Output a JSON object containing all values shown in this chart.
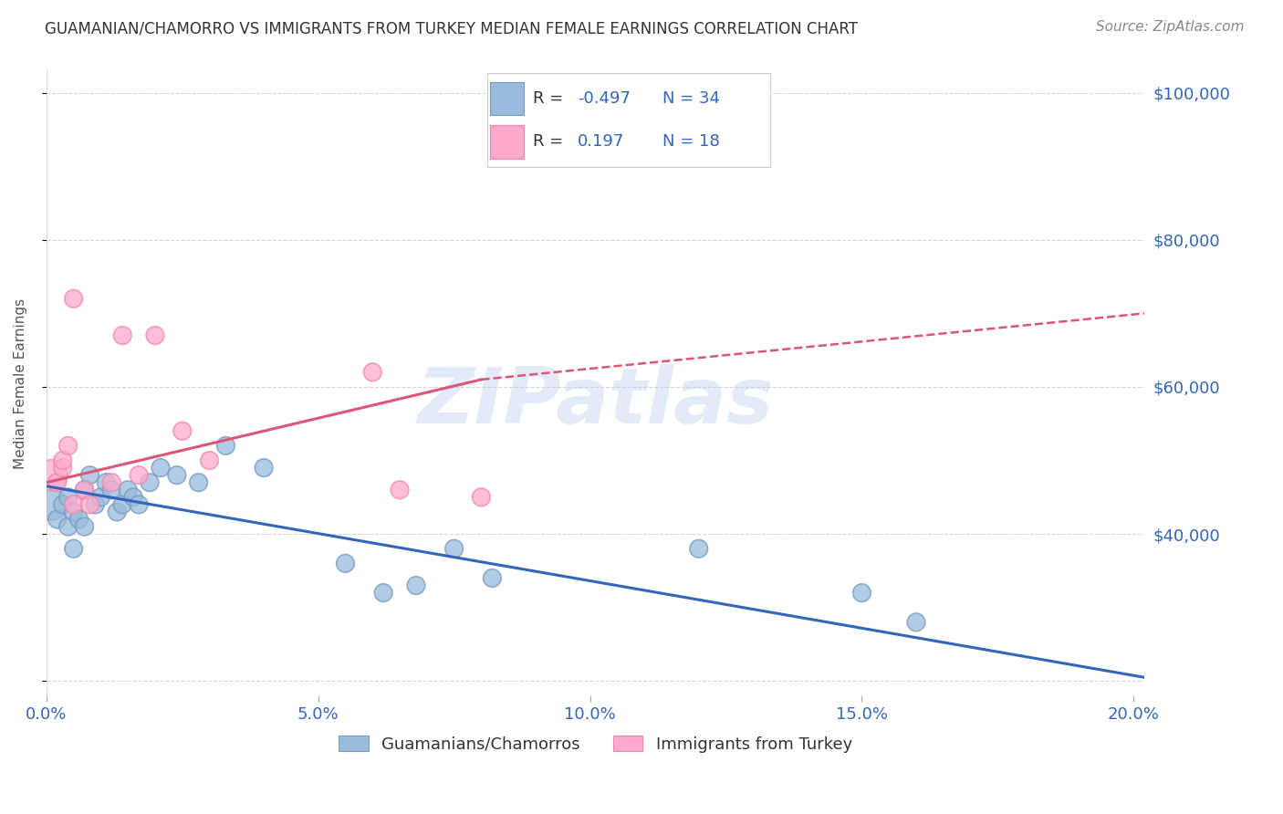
{
  "title": "GUAMANIAN/CHAMORRO VS IMMIGRANTS FROM TURKEY MEDIAN FEMALE EARNINGS CORRELATION CHART",
  "source": "Source: ZipAtlas.com",
  "ylabel": "Median Female Earnings",
  "xlim": [
    0.0,
    0.202
  ],
  "ylim": [
    18000,
    103000
  ],
  "yticks": [
    20000,
    40000,
    60000,
    80000,
    100000
  ],
  "ytick_labels": [
    "",
    "$40,000",
    "$60,000",
    "$80,000",
    "$100,000"
  ],
  "xtick_positions": [
    0.0,
    0.05,
    0.1,
    0.15,
    0.2
  ],
  "xtick_labels": [
    "0.0%",
    "5.0%",
    "10.0%",
    "15.0%",
    "20.0%"
  ],
  "blue_color": "#99BBDD",
  "pink_color": "#FFAACC",
  "blue_edge_color": "#7799BB",
  "pink_edge_color": "#EE88AA",
  "blue_line_color": "#3366BB",
  "pink_line_color": "#DD5577",
  "tick_label_color": "#3366BB",
  "R_blue": "-0.497",
  "N_blue": "34",
  "R_pink": "0.197",
  "N_pink": "18",
  "blue_scatter_x": [
    0.001,
    0.002,
    0.003,
    0.004,
    0.004,
    0.005,
    0.005,
    0.006,
    0.007,
    0.007,
    0.008,
    0.009,
    0.01,
    0.011,
    0.012,
    0.013,
    0.014,
    0.015,
    0.016,
    0.017,
    0.019,
    0.021,
    0.024,
    0.028,
    0.033,
    0.04,
    0.055,
    0.062,
    0.068,
    0.075,
    0.082,
    0.12,
    0.15,
    0.16
  ],
  "blue_scatter_y": [
    44000,
    42000,
    44000,
    45000,
    41000,
    43000,
    38000,
    42000,
    46000,
    41000,
    48000,
    44000,
    45000,
    47000,
    46000,
    43000,
    44000,
    46000,
    45000,
    44000,
    47000,
    49000,
    48000,
    47000,
    52000,
    49000,
    36000,
    32000,
    33000,
    38000,
    34000,
    38000,
    32000,
    28000
  ],
  "blue_scatter_size": [
    600,
    200,
    200,
    200,
    200,
    200,
    200,
    200,
    200,
    200,
    200,
    200,
    200,
    200,
    200,
    200,
    200,
    200,
    200,
    200,
    200,
    200,
    200,
    200,
    200,
    200,
    200,
    200,
    200,
    200,
    200,
    200,
    200,
    200
  ],
  "pink_scatter_x": [
    0.001,
    0.002,
    0.003,
    0.003,
    0.004,
    0.005,
    0.005,
    0.007,
    0.008,
    0.012,
    0.014,
    0.017,
    0.02,
    0.025,
    0.03,
    0.06,
    0.065,
    0.08
  ],
  "pink_scatter_y": [
    48000,
    47000,
    49000,
    50000,
    52000,
    44000,
    72000,
    46000,
    44000,
    47000,
    67000,
    48000,
    67000,
    54000,
    50000,
    62000,
    46000,
    45000
  ],
  "pink_scatter_size": [
    600,
    200,
    200,
    200,
    200,
    200,
    200,
    200,
    200,
    200,
    200,
    200,
    200,
    200,
    200,
    200,
    200,
    200
  ],
  "watermark": "ZIPatlas",
  "legend_blue_label": "Guamanians/Chamorros",
  "legend_pink_label": "Immigrants from Turkey",
  "blue_trend_x0": 0.0,
  "blue_trend_x1": 0.202,
  "blue_trend_y0": 46500,
  "blue_trend_y1": 20500,
  "pink_trend_x0": 0.0,
  "pink_trend_xmid": 0.08,
  "pink_trend_x1": 0.202,
  "pink_trend_y0": 47000,
  "pink_trend_ymid": 61000,
  "pink_trend_y1": 70000,
  "grid_color": "#CCCCCC",
  "background_color": "#FFFFFF",
  "title_color": "#333333"
}
